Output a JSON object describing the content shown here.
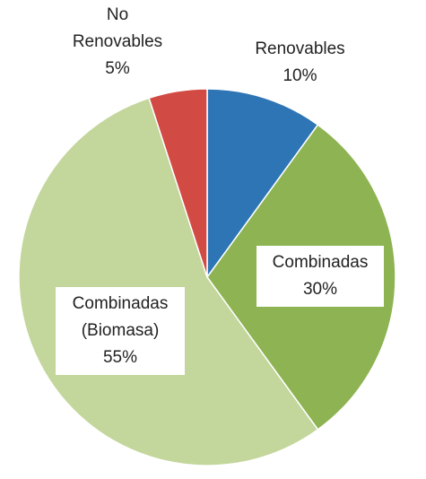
{
  "chart_data": {
    "type": "pie",
    "start_angle_deg": 0,
    "direction": "clockwise",
    "border_color": "#ffffff",
    "slices": [
      {
        "key": "renovables",
        "lines": [
          "Renovables",
          "10%"
        ],
        "value": 10,
        "color": "#2e75b6"
      },
      {
        "key": "combinadas",
        "lines": [
          "Combinadas",
          "30%"
        ],
        "value": 30,
        "color": "#8db352"
      },
      {
        "key": "biomasa",
        "lines": [
          "Combinadas",
          "(Biomasa)",
          "55%"
        ],
        "value": 55,
        "color": "#c3d69b"
      },
      {
        "key": "no-renovables",
        "lines": [
          "No",
          "Renovables",
          "5%"
        ],
        "value": 5,
        "color": "#d24a44"
      }
    ]
  }
}
